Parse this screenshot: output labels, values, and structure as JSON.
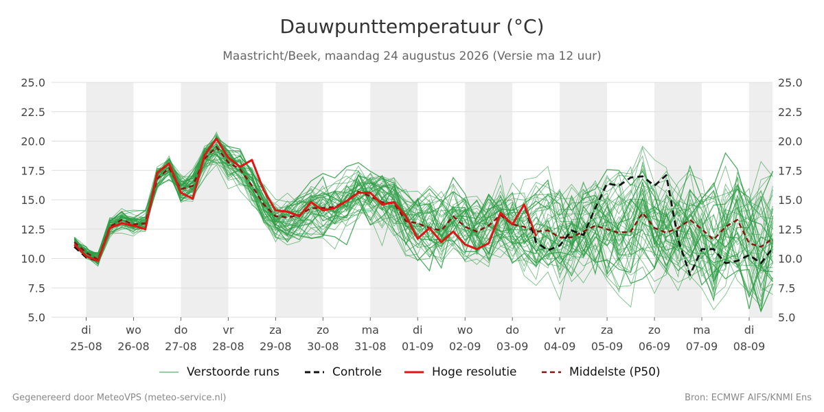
{
  "title": "Dauwpunttemperatuur (°C)",
  "subtitle": "Maastricht/Beek, maandag 24 augustus 2026 (Versie ma 12 uur)",
  "footer": {
    "left": "Gegenereerd door MeteoVPS (meteo-service.nl)",
    "right": "Bron: ECMWF AIFS/KNMI Ens"
  },
  "legend": {
    "members": "Verstoorde runs",
    "control": "Controle",
    "hires": "Hoge resolutie",
    "median": "Middelste (P50)"
  },
  "colors": {
    "members": "#2e9e45",
    "control": "#111111",
    "hires": "#e01515",
    "median": "#8b1010",
    "night_band": "#eeeeee",
    "grid": "#dddddd"
  },
  "chart_data": {
    "type": "line",
    "x_unit": "days since 25-08 00:00",
    "xlim": [
      -0.25,
      14.5
    ],
    "ylim": [
      5.0,
      25.0
    ],
    "yticks": [
      "5.0",
      "7.5",
      "10.0",
      "12.5",
      "15.0",
      "17.5",
      "20.0",
      "22.5",
      "25.0"
    ],
    "ytick_values": [
      5.0,
      7.5,
      10.0,
      12.5,
      15.0,
      17.5,
      20.0,
      22.5,
      25.0
    ],
    "xticks": [
      {
        "day": "di",
        "date": "25-08"
      },
      {
        "day": "wo",
        "date": "26-08"
      },
      {
        "day": "do",
        "date": "27-08"
      },
      {
        "day": "vr",
        "date": "28-08"
      },
      {
        "day": "za",
        "date": "29-08"
      },
      {
        "day": "zo",
        "date": "30-08"
      },
      {
        "day": "ma",
        "date": "31-08"
      },
      {
        "day": "di",
        "date": "01-09"
      },
      {
        "day": "wo",
        "date": "02-09"
      },
      {
        "day": "do",
        "date": "03-09"
      },
      {
        "day": "vr",
        "date": "04-09"
      },
      {
        "day": "za",
        "date": "05-09"
      },
      {
        "day": "zo",
        "date": "06-09"
      },
      {
        "day": "ma",
        "date": "07-09"
      },
      {
        "day": "di",
        "date": "08-09"
      }
    ],
    "grey_bands": [
      [
        0,
        1
      ],
      [
        2,
        3
      ],
      [
        4,
        5
      ],
      [
        6,
        7
      ],
      [
        8,
        9
      ],
      [
        10,
        11
      ],
      [
        12,
        13
      ],
      [
        14,
        14.5
      ]
    ],
    "series": [
      {
        "name": "Hoge resolutie",
        "x": [
          -0.25,
          0,
          0.25,
          0.5,
          0.75,
          1,
          1.25,
          1.5,
          1.75,
          2,
          2.25,
          2.5,
          2.75,
          3,
          3.25,
          3.5,
          3.75,
          4,
          4.25,
          4.5,
          4.75,
          5,
          5.25,
          5.5,
          5.75,
          6,
          6.25,
          6.5,
          6.75,
          7,
          7.25,
          7.5,
          7.75,
          8,
          8.25,
          8.5,
          8.75,
          9,
          9.25,
          9.5
        ],
        "y": [
          11.2,
          10.2,
          9.8,
          12.6,
          13.0,
          12.8,
          12.5,
          17.3,
          18.1,
          15.6,
          15.1,
          18.8,
          20.2,
          18.6,
          17.8,
          18.4,
          15.8,
          14.1,
          14.0,
          13.6,
          14.8,
          14.1,
          14.3,
          14.9,
          15.6,
          15.6,
          14.6,
          14.8,
          13.6,
          11.7,
          12.6,
          11.4,
          12.3,
          11.2,
          10.8,
          11.3,
          13.9,
          12.9,
          14.6,
          11.9
        ]
      },
      {
        "name": "Controle",
        "x": [
          -0.25,
          0,
          0.25,
          0.5,
          0.75,
          1,
          1.25,
          1.5,
          1.75,
          2,
          2.25,
          2.5,
          2.75,
          3,
          3.25,
          3.5,
          3.75,
          4,
          4.25,
          4.5,
          4.75,
          5,
          5.25,
          5.5,
          5.75,
          6,
          6.25,
          6.5,
          6.75,
          7,
          7.25,
          7.5,
          7.75,
          8,
          8.25,
          8.5,
          8.75,
          9,
          9.25,
          9.5,
          9.75,
          10,
          10.25,
          10.5,
          10.75,
          11,
          11.25,
          11.5,
          11.75,
          12,
          12.25,
          12.5,
          12.75,
          13,
          13.25,
          13.5,
          13.75,
          14,
          14.25,
          14.5
        ],
        "y": [
          11.0,
          10.1,
          9.8,
          12.6,
          13.0,
          12.8,
          12.5,
          17.3,
          18.1,
          15.6,
          15.1,
          18.8,
          20.2,
          18.6,
          17.8,
          18.4,
          15.8,
          14.1,
          14.0,
          13.6,
          14.8,
          14.1,
          14.3,
          14.9,
          15.6,
          15.6,
          14.6,
          14.8,
          13.6,
          11.7,
          12.6,
          11.4,
          12.3,
          11.2,
          10.8,
          11.3,
          13.9,
          12.9,
          14.6,
          11.4,
          10.7,
          11.1,
          12.4,
          12.0,
          14.3,
          16.4,
          16.2,
          16.9,
          17.0,
          16.2,
          17.1,
          11.6,
          8.6,
          10.8,
          10.8,
          9.6,
          9.8,
          10.3,
          9.6,
          10.9
        ]
      },
      {
        "name": "Middelste (P50)",
        "x": [
          -0.25,
          0,
          0.25,
          0.5,
          0.75,
          1,
          1.25,
          1.5,
          1.75,
          2,
          2.25,
          2.5,
          2.75,
          3,
          3.25,
          3.5,
          3.75,
          4,
          4.25,
          4.5,
          4.75,
          5,
          5.25,
          5.5,
          5.75,
          6,
          6.25,
          6.5,
          6.75,
          7,
          7.25,
          7.5,
          7.75,
          8,
          8.25,
          8.5,
          8.75,
          9,
          9.25,
          9.5,
          9.75,
          10,
          10.25,
          10.5,
          10.75,
          11,
          11.25,
          11.5,
          11.75,
          12,
          12.25,
          12.5,
          12.75,
          13,
          13.25,
          13.5,
          13.75,
          14,
          14.25,
          14.5
        ],
        "y": [
          11.4,
          10.5,
          9.9,
          12.7,
          13.3,
          12.9,
          13.0,
          16.8,
          17.7,
          15.9,
          16.2,
          18.5,
          19.5,
          18.2,
          17.6,
          16.2,
          14.6,
          13.6,
          13.5,
          13.7,
          14.3,
          14.3,
          14.4,
          14.9,
          15.7,
          15.3,
          14.8,
          14.7,
          13.2,
          13.0,
          12.6,
          12.4,
          13.6,
          12.7,
          12.3,
          12.8,
          13.7,
          12.9,
          12.7,
          12.3,
          12.4,
          11.8,
          11.8,
          12.3,
          12.8,
          12.5,
          12.2,
          12.3,
          13.9,
          12.6,
          12.2,
          12.6,
          13.3,
          12.5,
          11.6,
          12.7,
          13.3,
          11.3,
          11.0,
          11.7
        ]
      }
    ]
  }
}
